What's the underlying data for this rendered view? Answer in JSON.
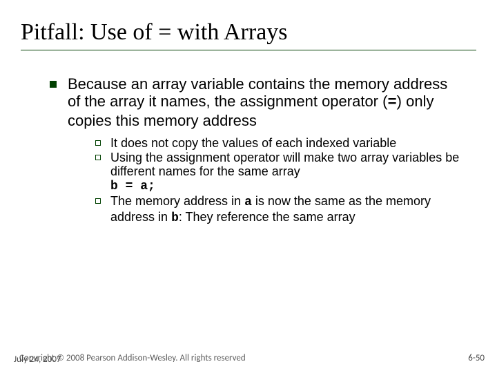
{
  "title": "Pitfall:  Use of = with Arrays",
  "lvl1": {
    "pre": "Because an array variable contains the memory address of the array it names, the assignment operator (",
    "op": "=",
    "post": ") only copies this memory address"
  },
  "lvl2": {
    "item1": "It does not copy the values of each indexed variable",
    "item2": "Using the assignment operator will make two array variables be different names for the same array",
    "code": "b = a;",
    "item3_pre": "The memory address in ",
    "item3_a": "a",
    "item3_mid": " is now the same as the memory address in ",
    "item3_b": "b",
    "item3_post": ":  They reference the same array"
  },
  "footer": {
    "copyright": "Copyright © 2008 Pearson Addison-Wesley. All rights reserved",
    "date": "July 24, 2007",
    "pagenum": "6-50"
  },
  "colors": {
    "accent": "#004000",
    "text": "#000000",
    "footer_text": "#5a5a5a"
  }
}
